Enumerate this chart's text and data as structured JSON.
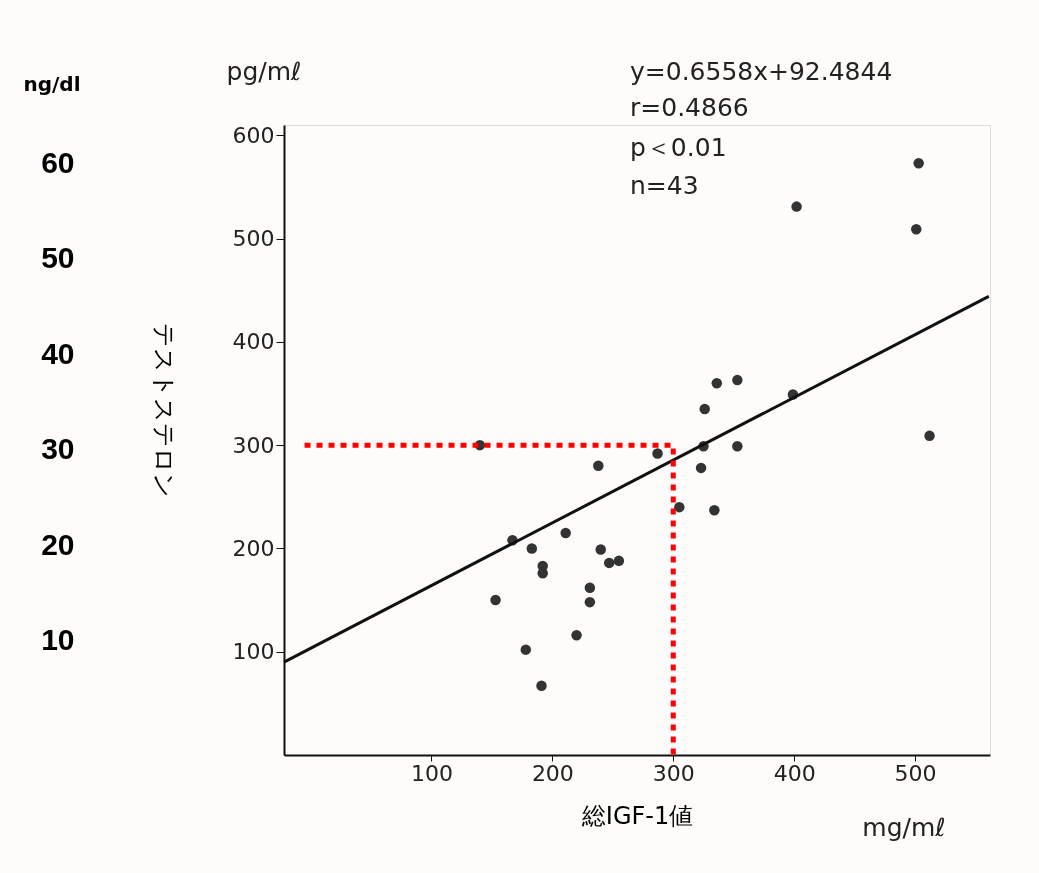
{
  "chart_data": {
    "type": "scatter",
    "xlabel": "総IGF-1値",
    "ylabel": "テストステロン",
    "y2label": "ng/dl",
    "annotations": [
      "y=0.6558x+92.4844",
      "r=0.4866",
      "p＜0.01",
      "n=43",
      "pg/mℓ",
      "mg/mℓ"
    ],
    "xlim": [
      -22,
      562
    ],
    "xticks": [
      100,
      200,
      300,
      400,
      500
    ],
    "ylim": [
      0,
      610
    ],
    "yticks": [
      100,
      200,
      300,
      400,
      500,
      600
    ],
    "y2lim": [
      -2,
      64
    ],
    "y2ticks": [
      10,
      20,
      30,
      40,
      50,
      60
    ],
    "grid": false,
    "series": [
      {
        "marker": "circle",
        "color": "#333333",
        "x": [
          140,
          167,
          153,
          183,
          192,
          192,
          178,
          191,
          211,
          220,
          231,
          231,
          240,
          247,
          255,
          238,
          287,
          305,
          323,
          325,
          326,
          336,
          353,
          353,
          334,
          399,
          402,
          501,
          503,
          512
        ],
        "values": [
          300,
          208,
          150,
          200,
          183,
          176,
          102,
          67,
          215,
          116,
          162,
          148,
          199,
          186,
          188,
          280,
          292,
          240,
          278,
          299,
          335,
          360,
          363,
          299,
          237,
          349,
          531,
          509,
          573,
          309
        ]
      },
      {
        "type": "line",
        "color": "#111111",
        "line_style": "solid",
        "x": [
          -22,
          561
        ],
        "values": [
          90,
          444
        ]
      },
      {
        "type": "line",
        "color": "#ff0000",
        "line_style": "dotted",
        "x": [
          -5,
          300,
          300
        ],
        "values": [
          300,
          300,
          0
        ]
      }
    ]
  }
}
